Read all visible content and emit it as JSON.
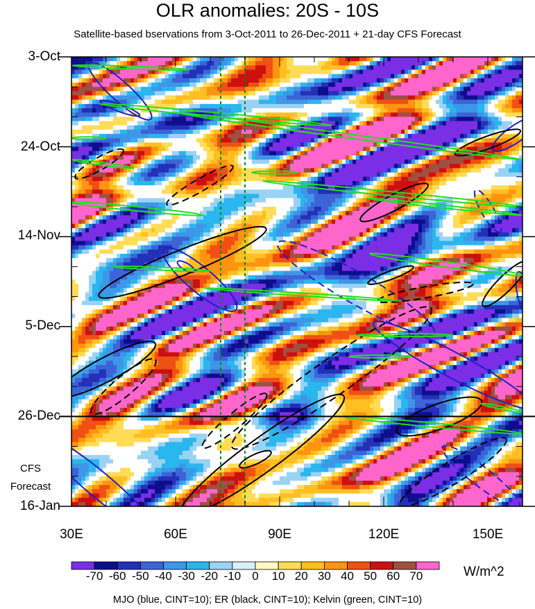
{
  "title": "OLR anomalies: 20S - 10S",
  "subtitle": "Satellite-based bservations from 3-Oct-2011 to 26-Dec-2011 + 21-day CFS Forecast",
  "cfs_label_line1": "CFS",
  "cfs_label_line2": "Forecast",
  "units": "W/m^2",
  "footer": "MJO (blue, CINT=10); ER (black, CINT=10); Kelvin (green, CINT=10)",
  "chart_data": {
    "type": "heatmap",
    "title": "OLR anomalies: 20S - 10S",
    "xlabel": "",
    "ylabel": "",
    "x_range": [
      30,
      160
    ],
    "y_range": [
      "3-Oct-2011",
      "16-Jan-2012"
    ],
    "x_ticks": [
      "30E",
      "60E",
      "90E",
      "120E",
      "150E"
    ],
    "y_ticks": [
      "3-Oct",
      "24-Oct",
      "14-Nov",
      "5-Dec",
      "26-Dec",
      "16-Jan"
    ],
    "observation_end": "26-Dec",
    "reference_longitudes": [
      73,
      80
    ],
    "colorbar": {
      "labels": [
        "-70",
        "-60",
        "-50",
        "-40",
        "-30",
        "-20",
        "-10",
        "0",
        "10",
        "20",
        "30",
        "40",
        "50",
        "60",
        "70"
      ],
      "colors": [
        "#7a2ee6",
        "#0e0e8c",
        "#2330b8",
        "#3c64d6",
        "#3e96e8",
        "#2ab6ee",
        "#9ad2f4",
        "#d8f0f8",
        "#fff8c0",
        "#ffdc55",
        "#ffbe22",
        "#ff9410",
        "#f05014",
        "#cc1010",
        "#a05040",
        "#ff66cc"
      ]
    },
    "contours": [
      {
        "wave": "MJO",
        "color": "#2020c0"
      },
      {
        "wave": "ER",
        "color": "#000000"
      },
      {
        "wave": "Kelvin",
        "color": "#22dd22"
      }
    ]
  }
}
